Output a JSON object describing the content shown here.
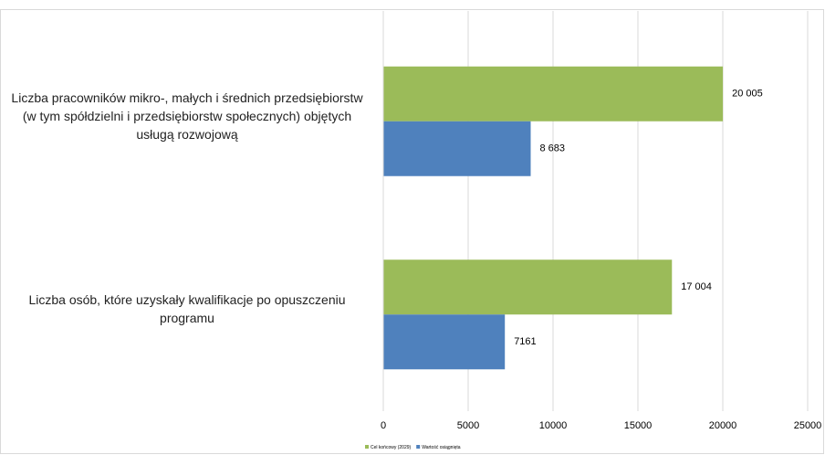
{
  "chart_data": {
    "type": "bar",
    "orientation": "horizontal",
    "categories": [
      "Liczba pracowników mikro-, małych i średnich przedsiębiorstw (w tym spółdzielni i przedsiębiorstw społecznych) objętych usługą rozwojową",
      "Liczba osób, które uzyskały kwalifikacje po opuszczeniu programu"
    ],
    "series": [
      {
        "name": "Cel końcowy (2029)",
        "color": "#9bbb59",
        "values": [
          20005,
          17004
        ],
        "value_labels": [
          "20 005",
          "17 004"
        ]
      },
      {
        "name": "Wartość osiągnięta",
        "color": "#4f81bd",
        "values": [
          8683,
          7161
        ],
        "value_labels": [
          "8 683",
          "7161"
        ]
      }
    ],
    "xlim": [
      0,
      25000
    ],
    "xticks": [
      0,
      5000,
      10000,
      15000,
      20000,
      25000
    ],
    "grid": true,
    "legend": "bottom"
  }
}
